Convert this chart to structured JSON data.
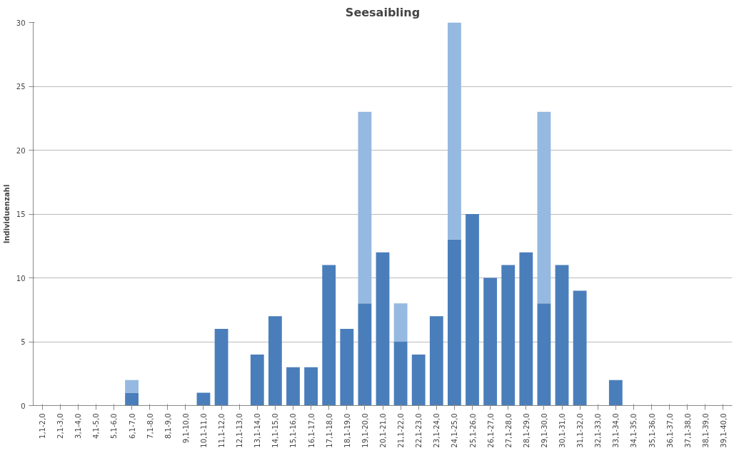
{
  "chart_data": {
    "type": "bar",
    "title": "Seesaibling",
    "ylabel": "Individuenzahl",
    "categories": [
      "1,1-2,0",
      "2,1-3,0",
      "3,1-4,0",
      "4,1-5,0",
      "5,1-6,0",
      "6,1-7,0",
      "7,1-8,0",
      "8,1-9,0",
      "9,1-10,0",
      "10,1-11,0",
      "11,1-12,0",
      "12,1-13,0",
      "13,1-14,0",
      "14,1-15,0",
      "15,1-16,0",
      "16,1-17,0",
      "17,1-18,0",
      "18,1-19,0",
      "19,1-20,0",
      "20,1-21,0",
      "21,1-22,0",
      "22,1-23,0",
      "23,1-24,0",
      "24,1-25,0",
      "25,1-26,0",
      "26,1-27,0",
      "27,1-28,0",
      "28,1-29,0",
      "29,1-30,0",
      "30,1-31,0",
      "31,1-32,0",
      "32,1-33,0",
      "33,1-34,0",
      "34,1-35,0",
      "35,1-36,0",
      "36,1-37,0",
      "37,1-38,0",
      "38,1-39,0",
      "39,1-40,0"
    ],
    "stacked": true,
    "series": [
      {
        "color": "#4a7ebb",
        "values": [
          0,
          0,
          0,
          0,
          0,
          1,
          0,
          0,
          0,
          1,
          6,
          0,
          4,
          7,
          3,
          3,
          11,
          6,
          8,
          12,
          5,
          4,
          7,
          13,
          15,
          10,
          11,
          12,
          8,
          11,
          9,
          0,
          2,
          0,
          0,
          0,
          0,
          0,
          0
        ]
      },
      {
        "color": "#95b9e0",
        "values": [
          0,
          0,
          0,
          0,
          0,
          1,
          0,
          0,
          0,
          0,
          0,
          0,
          0,
          0,
          0,
          0,
          0,
          0,
          15,
          0,
          3,
          0,
          0,
          17,
          0,
          0,
          0,
          0,
          15,
          0,
          0,
          0,
          0,
          0,
          0,
          0,
          0,
          0,
          0
        ]
      }
    ],
    "ylim": [
      0,
      30
    ],
    "yticks": [
      0,
      5,
      10,
      15,
      20,
      25,
      30
    ],
    "grid": "y"
  }
}
